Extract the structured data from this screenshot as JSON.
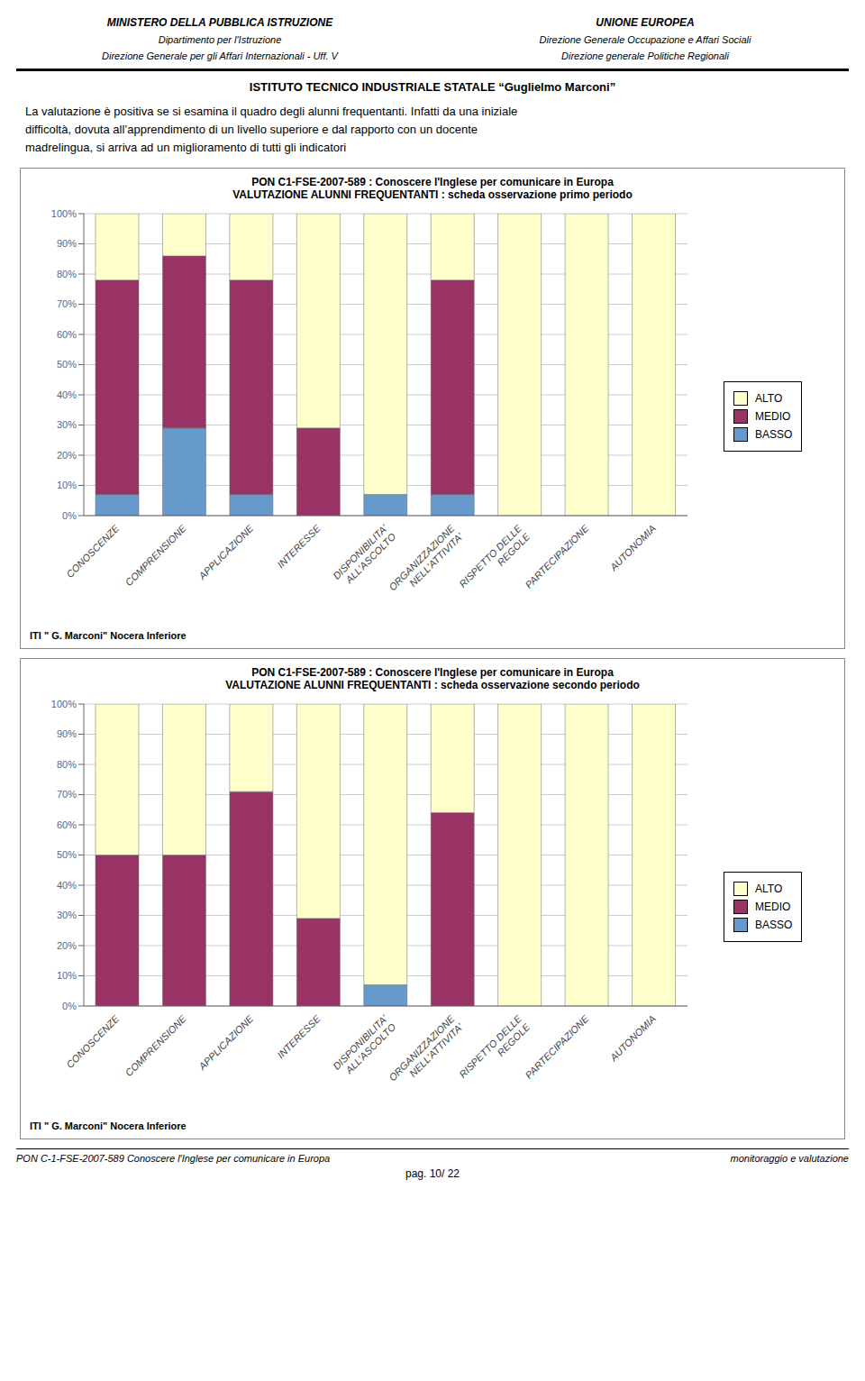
{
  "chart_data": [
    {
      "type": "bar",
      "title": "PON C1-FSE-2007-589 : Conoscere l'Inglese per comunicare in Europa",
      "subtitle": "VALUTAZIONE ALUNNI FREQUENTANTI : scheda osservazione primo periodo",
      "categories": [
        "CONOSCENZE",
        "COMPRENSIONE",
        "APPLICAZIONE",
        "INTERESSE",
        "DISPONIBILITA'\nALL'ASCOLTO",
        "ORGANIZZAZIONE\nNELL'ATTIVITA'",
        "RISPETTO DELLE\nREGOLE",
        "PARTECIPAZIONE",
        "AUTONOMIA"
      ],
      "series": [
        {
          "name": "BASSO",
          "color": "#6699CC",
          "values": [
            7,
            29,
            7,
            0,
            7,
            7,
            0,
            0,
            0
          ]
        },
        {
          "name": "MEDIO",
          "color": "#993366",
          "values": [
            71,
            57,
            71,
            29,
            0,
            71,
            0,
            0,
            0
          ]
        },
        {
          "name": "ALTO",
          "color": "#FFFFCC",
          "values": [
            22,
            14,
            22,
            71,
            93,
            22,
            100,
            100,
            100
          ]
        }
      ],
      "ylim": [
        0,
        100
      ],
      "yticks": [
        {
          "value": 0,
          "label": "0%"
        },
        {
          "value": 10,
          "label": "10%"
        },
        {
          "value": 20,
          "label": "20%"
        },
        {
          "value": 30,
          "label": "30%"
        },
        {
          "value": 40,
          "label": "40%"
        },
        {
          "value": 50,
          "label": "50%"
        },
        {
          "value": 60,
          "label": "60%"
        },
        {
          "value": 70,
          "label": "70%"
        },
        {
          "value": 80,
          "label": "80%"
        },
        {
          "value": 90,
          "label": "90%"
        },
        {
          "value": 100,
          "label": "100%"
        }
      ],
      "stacked": true,
      "grid": true,
      "legend": "right",
      "annotations": [
        "ITI \" G. Marconi\" Nocera Inferiore"
      ]
    },
    {
      "type": "bar",
      "title": "PON C1-FSE-2007-589 : Conoscere l'Inglese per comunicare in Europa",
      "subtitle": "VALUTAZIONE ALUNNI FREQUENTANTI : scheda osservazione secondo periodo",
      "categories": [
        "CONOSCENZE",
        "COMPRENSIONE",
        "APPLICAZIONE",
        "INTERESSE",
        "DISPONIBILITA'\nALL'ASCOLTO",
        "ORGANIZZAZIONE\nNELL'ATTIVITA'",
        "RISPETTO DELLE\nREGOLE",
        "PARTECIPAZIONE",
        "AUTONOMIA"
      ],
      "series": [
        {
          "name": "BASSO",
          "color": "#6699CC",
          "values": [
            0,
            0,
            0,
            0,
            7,
            0,
            0,
            0,
            0
          ]
        },
        {
          "name": "MEDIO",
          "color": "#993366",
          "values": [
            50,
            50,
            71,
            29,
            0,
            64,
            0,
            0,
            0
          ]
        },
        {
          "name": "ALTO",
          "color": "#FFFFCC",
          "values": [
            50,
            50,
            29,
            71,
            93,
            36,
            100,
            100,
            100
          ]
        }
      ],
      "ylim": [
        0,
        100
      ],
      "yticks": [
        {
          "value": 0,
          "label": "0%"
        },
        {
          "value": 10,
          "label": "10%"
        },
        {
          "value": 20,
          "label": "20%"
        },
        {
          "value": 30,
          "label": "30%"
        },
        {
          "value": 40,
          "label": "40%"
        },
        {
          "value": 50,
          "label": "50%"
        },
        {
          "value": 60,
          "label": "60%"
        },
        {
          "value": 70,
          "label": "70%"
        },
        {
          "value": 80,
          "label": "80%"
        },
        {
          "value": 90,
          "label": "90%"
        },
        {
          "value": 100,
          "label": "100%"
        }
      ],
      "stacked": true,
      "grid": true,
      "legend": "right",
      "annotations": [
        "ITI \" G. Marconi\" Nocera Inferiore"
      ]
    }
  ],
  "annotations": [
    "MINISTERO DELLA PUBBLICA ISTRUZIONE",
    "Dipartimento per l'Istruzione",
    "Direzione Generale per gli Affari Internazionali - Uff. V",
    "UNIONE EUROPEA",
    "Direzione Generale Occupazione e Affari Sociali",
    "Direzione generale Politiche Regionali",
    "ISTITUTO TECNICO INDUSTRIALE STATALE  “Guglielmo Marconi”",
    "La valutazione è positiva se si esamina il quadro degli alunni frequentanti. Infatti da una iniziale",
    "difficoltà, dovuta all’apprendimento di un livello superiore e dal rapporto con un docente",
    "madrelingua, si arriva ad un miglioramento di tutti gli indicatori",
    "PON C-1-FSE-2007-589 Conoscere l'Inglese per comunicare in Europa",
    "pag. 10/ 22",
    "monitoraggio e valutazione"
  ]
}
